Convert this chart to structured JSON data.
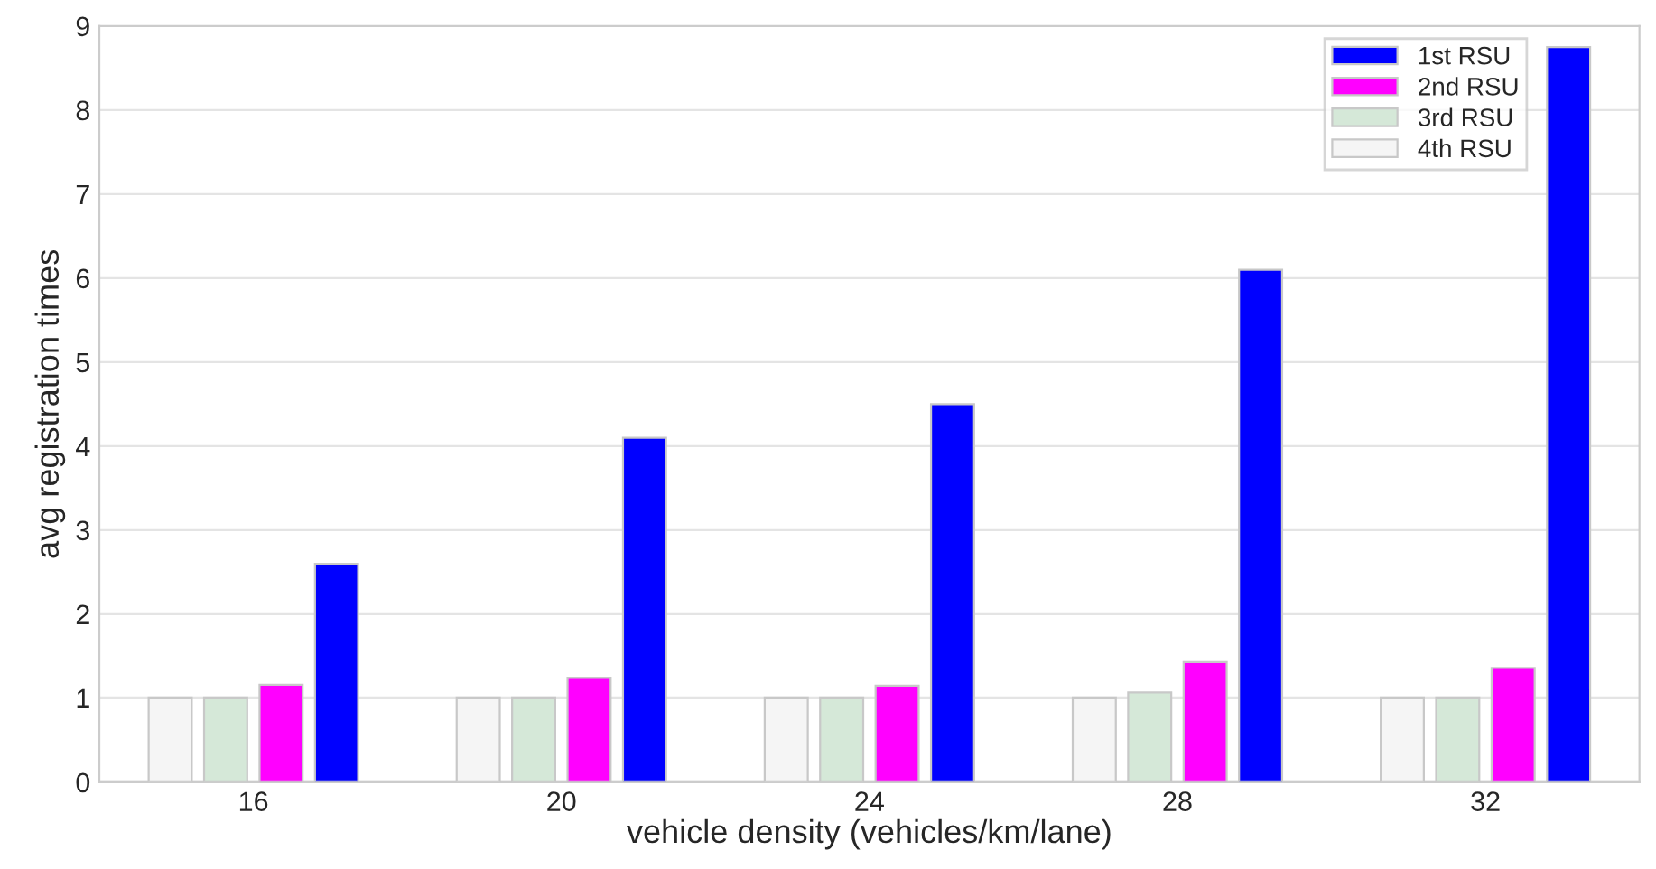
{
  "chart_data": {
    "type": "bar",
    "xlabel": "vehicle density (vehicles/km/lane)",
    "ylabel": "avg registration times",
    "categories": [
      "16",
      "20",
      "24",
      "28",
      "32"
    ],
    "series": [
      {
        "name": "1st RSU",
        "color": "#0000ff",
        "values": [
          2.6,
          4.1,
          4.5,
          6.1,
          8.75
        ]
      },
      {
        "name": "2nd RSU",
        "color": "#ff00ff",
        "values": [
          1.16,
          1.24,
          1.15,
          1.43,
          1.36
        ]
      },
      {
        "name": "3rd RSU",
        "color": "#d5e8d8",
        "values": [
          1,
          1,
          1,
          1.07,
          1
        ]
      },
      {
        "name": "4th RSU",
        "color": "#f5f5f5",
        "values": [
          1,
          1,
          1,
          1,
          1
        ]
      }
    ],
    "ylim": [
      0,
      9
    ],
    "yticks": [
      0,
      1,
      2,
      3,
      4,
      5,
      6,
      7,
      8,
      9
    ],
    "grid": "y",
    "legend": "top right"
  }
}
